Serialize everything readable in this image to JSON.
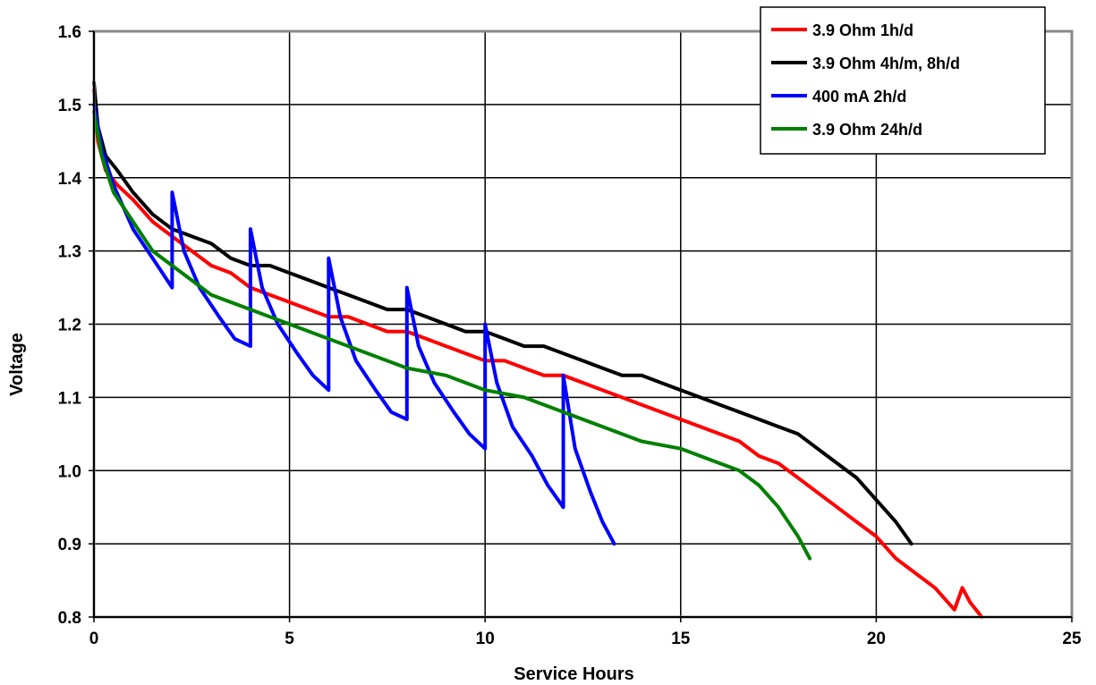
{
  "chart_data": {
    "type": "line",
    "title": "",
    "xlabel": "Service Hours",
    "ylabel": "Voltage",
    "xlim": [
      0,
      25
    ],
    "ylim": [
      0.8,
      1.6
    ],
    "xticks": [
      "0",
      "5",
      "10",
      "15",
      "20",
      "25"
    ],
    "yticks": [
      "0.8",
      "0.9",
      "1.0",
      "1.1",
      "1.2",
      "1.3",
      "1.4",
      "1.5",
      "1.6"
    ],
    "grid": true,
    "legend_position": "top-right",
    "series": [
      {
        "name": "3.9 Ohm 1h/d",
        "color": "#ff0000",
        "x": [
          0,
          0.1,
          0.3,
          0.6,
          1.0,
          1.5,
          2.0,
          2.5,
          3.0,
          3.5,
          4.0,
          4.5,
          5.0,
          5.5,
          6.0,
          6.5,
          7.0,
          7.5,
          8.0,
          8.5,
          9.0,
          9.5,
          10.0,
          10.5,
          11.0,
          11.5,
          12.0,
          12.5,
          13.0,
          13.5,
          14.0,
          14.5,
          15.0,
          15.5,
          16.0,
          16.5,
          17.0,
          17.5,
          18.0,
          18.5,
          19.0,
          19.5,
          20.0,
          20.5,
          21.0,
          21.5,
          22.0,
          22.2,
          22.4,
          22.7
        ],
        "y": [
          1.52,
          1.45,
          1.41,
          1.39,
          1.37,
          1.34,
          1.32,
          1.3,
          1.28,
          1.27,
          1.25,
          1.24,
          1.23,
          1.22,
          1.21,
          1.21,
          1.2,
          1.19,
          1.19,
          1.18,
          1.17,
          1.16,
          1.15,
          1.15,
          1.14,
          1.13,
          1.13,
          1.12,
          1.11,
          1.1,
          1.09,
          1.08,
          1.07,
          1.06,
          1.05,
          1.04,
          1.02,
          1.01,
          0.99,
          0.97,
          0.95,
          0.93,
          0.91,
          0.88,
          0.86,
          0.84,
          0.81,
          0.84,
          0.82,
          0.8
        ]
      },
      {
        "name": "3.9 Ohm 4h/m, 8h/d",
        "color": "#000000",
        "x": [
          0,
          0.1,
          0.3,
          0.6,
          1.0,
          1.5,
          2.0,
          2.5,
          3.0,
          3.5,
          4.0,
          4.5,
          5.0,
          5.5,
          6.0,
          6.5,
          7.0,
          7.5,
          8.0,
          8.5,
          9.0,
          9.5,
          10.0,
          10.5,
          11.0,
          11.5,
          12.0,
          12.5,
          13.0,
          13.5,
          14.0,
          14.5,
          15.0,
          15.5,
          16.0,
          16.5,
          17.0,
          17.5,
          18.0,
          18.5,
          19.0,
          19.5,
          20.0,
          20.5,
          20.9
        ],
        "y": [
          1.53,
          1.47,
          1.43,
          1.41,
          1.38,
          1.35,
          1.33,
          1.32,
          1.31,
          1.29,
          1.28,
          1.28,
          1.27,
          1.26,
          1.25,
          1.24,
          1.23,
          1.22,
          1.22,
          1.21,
          1.2,
          1.19,
          1.19,
          1.18,
          1.17,
          1.17,
          1.16,
          1.15,
          1.14,
          1.13,
          1.13,
          1.12,
          1.11,
          1.1,
          1.09,
          1.08,
          1.07,
          1.06,
          1.05,
          1.03,
          1.01,
          0.99,
          0.96,
          0.93,
          0.9
        ]
      },
      {
        "name": "400 mA 2h/d",
        "color": "#0000ff",
        "x": [
          0,
          0.2,
          0.5,
          1.0,
          1.5,
          2.0,
          2.0,
          2.3,
          2.7,
          3.2,
          3.6,
          4.0,
          4.0,
          4.3,
          4.7,
          5.2,
          5.6,
          6.0,
          6.0,
          6.3,
          6.7,
          7.2,
          7.6,
          8.0,
          8.0,
          8.3,
          8.7,
          9.2,
          9.6,
          10.0,
          10.0,
          10.3,
          10.7,
          11.2,
          11.6,
          12.0,
          12.0,
          12.3,
          12.7,
          13.0,
          13.3
        ],
        "y": [
          1.5,
          1.44,
          1.39,
          1.33,
          1.29,
          1.25,
          1.38,
          1.3,
          1.25,
          1.21,
          1.18,
          1.17,
          1.33,
          1.25,
          1.2,
          1.16,
          1.13,
          1.11,
          1.29,
          1.21,
          1.15,
          1.11,
          1.08,
          1.07,
          1.25,
          1.17,
          1.12,
          1.08,
          1.05,
          1.03,
          1.2,
          1.12,
          1.06,
          1.02,
          0.98,
          0.95,
          1.13,
          1.03,
          0.97,
          0.93,
          0.9
        ]
      },
      {
        "name": "3.9 Ohm 24h/d",
        "color": "#008000",
        "x": [
          0,
          0.2,
          0.5,
          1.0,
          1.5,
          2.0,
          2.5,
          3.0,
          4.0,
          5.0,
          6.0,
          7.0,
          8.0,
          9.0,
          10.0,
          11.0,
          12.0,
          13.0,
          14.0,
          15.0,
          16.0,
          16.5,
          17.0,
          17.5,
          18.0,
          18.3
        ],
        "y": [
          1.49,
          1.43,
          1.38,
          1.34,
          1.3,
          1.28,
          1.26,
          1.24,
          1.22,
          1.2,
          1.18,
          1.16,
          1.14,
          1.13,
          1.11,
          1.1,
          1.08,
          1.06,
          1.04,
          1.03,
          1.01,
          1.0,
          0.98,
          0.95,
          0.91,
          0.88
        ]
      }
    ]
  }
}
